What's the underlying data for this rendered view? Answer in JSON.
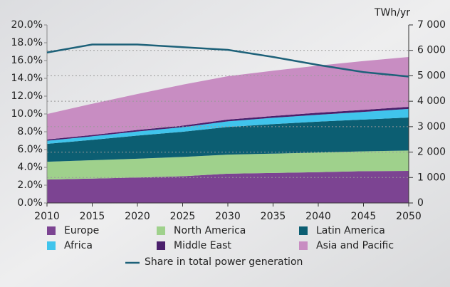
{
  "chart_data": {
    "type": "area",
    "stacked": true,
    "x": [
      2010,
      2015,
      2020,
      2025,
      2030,
      2035,
      2040,
      2045,
      2050
    ],
    "xlim": [
      2010,
      2050
    ],
    "xticks": [
      2010,
      2015,
      2020,
      2025,
      2030,
      2035,
      2040,
      2045,
      2050
    ],
    "ylim": [
      0,
      20
    ],
    "yticks": [
      {
        "value": 0,
        "label": "0.0%"
      },
      {
        "value": 2,
        "label": "2.0%"
      },
      {
        "value": 4,
        "label": "4.0%"
      },
      {
        "value": 6,
        "label": "6.0%"
      },
      {
        "value": 8,
        "label": "8.0%"
      },
      {
        "value": 10,
        "label": "10.0%"
      },
      {
        "value": 12,
        "label": "12.0%"
      },
      {
        "value": 14,
        "label": "14.0%"
      },
      {
        "value": 16,
        "label": "16.0%"
      },
      {
        "value": 18,
        "label": "18.0%"
      },
      {
        "value": 20,
        "label": "20.0%"
      }
    ],
    "y2label": "TWh/yr",
    "y2lim": [
      0,
      7000
    ],
    "y2ticks": [
      0,
      {
        "value": 1000,
        "label": "1 000"
      },
      {
        "value": 2000,
        "label": "2 000"
      },
      {
        "value": 3000,
        "label": "3 000"
      },
      {
        "value": 4000,
        "label": "4 000"
      },
      {
        "value": 5000,
        "label": "5 000"
      },
      {
        "value": 6000,
        "label": "6 000"
      },
      {
        "value": 7000,
        "label": "7 000"
      }
    ],
    "grid": true,
    "series": [
      {
        "name": "Europe",
        "color": "#7c4492",
        "axis": "y2",
        "values": [
          920,
          960,
          1000,
          1050,
          1150,
          1180,
          1210,
          1250,
          1260
        ]
      },
      {
        "name": "North America",
        "color": "#9fd18c",
        "axis": "y2",
        "values": [
          700,
          720,
          740,
          760,
          750,
          760,
          770,
          780,
          800
        ]
      },
      {
        "name": "Latin America",
        "color": "#0c5e72",
        "axis": "y2",
        "values": [
          705,
          800,
          910,
          990,
          1090,
          1160,
          1220,
          1250,
          1300
        ]
      },
      {
        "name": "Africa",
        "color": "#40c4ec",
        "axis": "y2",
        "values": [
          120,
          140,
          160,
          180,
          220,
          250,
          270,
          300,
          340
        ]
      },
      {
        "name": "Middle East",
        "color": "#4a1f6b",
        "axis": "y2",
        "values": [
          50,
          50,
          60,
          60,
          70,
          70,
          80,
          80,
          80
        ]
      },
      {
        "name": "Asia and Pacific",
        "color": "#c88dc2",
        "axis": "y2",
        "values": [
          1000,
          1230,
          1415,
          1610,
          1705,
          1780,
          1850,
          1920,
          1960
        ]
      },
      {
        "name": "Share in total power generation",
        "color": "#1d6179",
        "axis": "y",
        "type": "line",
        "values": [
          16.9,
          17.8,
          17.8,
          17.5,
          17.2,
          16.4,
          15.5,
          14.7,
          14.2
        ]
      }
    ]
  }
}
